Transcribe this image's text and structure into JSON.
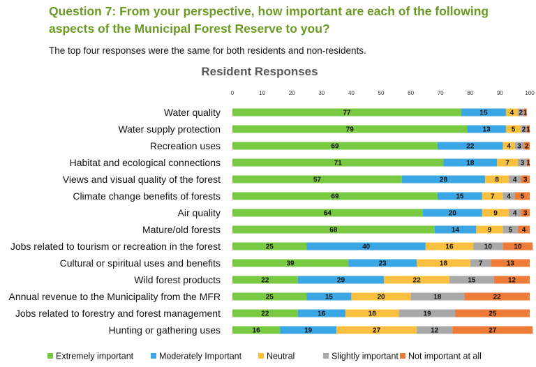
{
  "heading": "Question 7: From your perspective, how important are each of the following aspects of the Municipal Forest Reserve to you?",
  "intro": "The top four responses were the same for both residents and non-residents.",
  "chart_data": {
    "type": "bar",
    "orientation": "horizontal",
    "stacked": true,
    "title": "Resident Responses",
    "xlim": [
      0,
      100
    ],
    "xticks": [
      0,
      10,
      20,
      30,
      40,
      50,
      60,
      70,
      80,
      90,
      100
    ],
    "legend_position": "bottom",
    "categories": [
      "Water quality",
      "Water supply protection",
      "Recreation uses",
      "Habitat and ecological connections",
      "Views and visual quality of the forest",
      "Climate change benefits of forests",
      "Air quality",
      "Mature/old forests",
      "Jobs related to tourism or recreation in the forest",
      "Cultural or spiritual uses and benefits",
      "Wild forest products",
      "Annual revenue to the Municipality from the MFR",
      "Jobs related to forestry and forest management",
      "Hunting or gathering uses"
    ],
    "series": [
      {
        "name": "Extremely important",
        "color": "#7ac943",
        "values": [
          77,
          79,
          69,
          71,
          57,
          69,
          64,
          68,
          25,
          39,
          22,
          25,
          22,
          16
        ]
      },
      {
        "name": "Moderately Important",
        "color": "#3aa7e4",
        "values": [
          15,
          13,
          22,
          18,
          28,
          15,
          20,
          14,
          40,
          23,
          29,
          15,
          16,
          19
        ]
      },
      {
        "name": "Neutral",
        "color": "#f9c03f",
        "values": [
          4,
          5,
          4,
          7,
          8,
          7,
          9,
          9,
          16,
          18,
          22,
          20,
          18,
          27
        ]
      },
      {
        "name": "Slightly important",
        "color": "#a9a9a9",
        "values": [
          2,
          2,
          3,
          3,
          4,
          4,
          4,
          5,
          10,
          7,
          15,
          18,
          19,
          12
        ]
      },
      {
        "name": "Not important at all",
        "color": "#ee7b37",
        "values": [
          1,
          1,
          2,
          1,
          3,
          5,
          3,
          4,
          10,
          13,
          12,
          22,
          25,
          27
        ]
      }
    ]
  }
}
